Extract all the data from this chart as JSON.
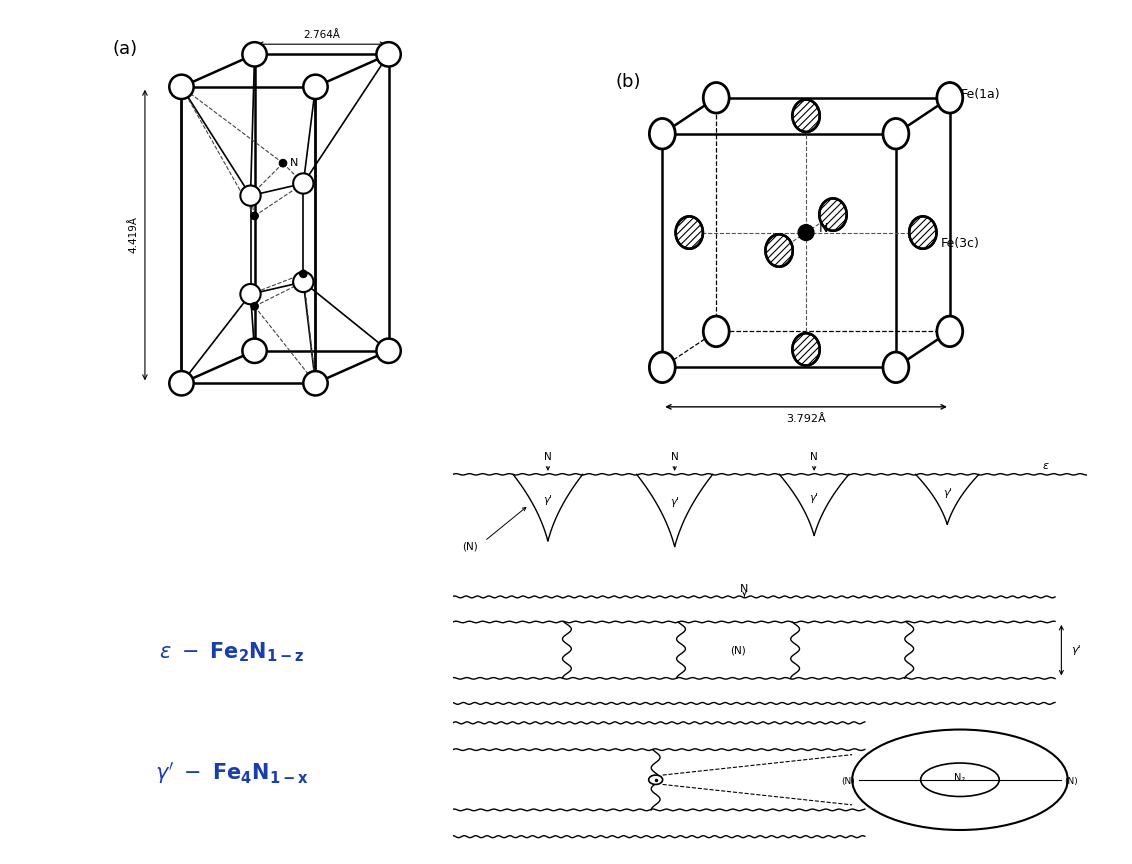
{
  "bg_color": "#ffffff",
  "label_a": "(a)",
  "label_b": "(b)",
  "dim_top_a": "2.764Å",
  "dim_side_a": "4.419Å",
  "dim_bottom_b": "3.792Å",
  "fe1a_label": "Fe(1a)",
  "fe3c_label": "Fe(3c)",
  "N_label": "N"
}
